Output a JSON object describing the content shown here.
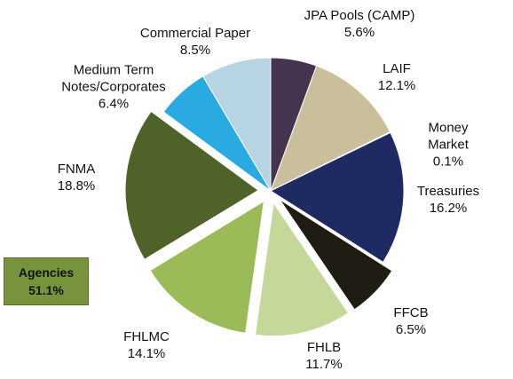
{
  "chart_data": {
    "type": "pie",
    "categories": [
      "JPA Pools (CAMP)",
      "LAIF",
      "Money Market",
      "Treasuries",
      "FFCB",
      "FHLB",
      "FHLMC",
      "FNMA",
      "Medium Term\nNotes/Corporates",
      "Commercial Paper"
    ],
    "values": [
      5.6,
      12.1,
      0.1,
      16.2,
      6.5,
      11.7,
      14.1,
      18.8,
      6.4,
      8.5
    ],
    "value_labels": [
      "5.6%",
      "12.1%",
      "0.1%",
      "16.2%",
      "6.5%",
      "11.7%",
      "14.1%",
      "18.8%",
      "6.4%",
      "8.5%"
    ],
    "colors": [
      "#45344f",
      "#c9bf9a",
      "#e6d86a",
      "#1f2a63",
      "#1f1c14",
      "#c5d89a",
      "#9bbb59",
      "#4f6228",
      "#29abe2",
      "#b7d4e3"
    ],
    "exploded": [
      false,
      false,
      false,
      false,
      true,
      true,
      true,
      true,
      false,
      false
    ],
    "annotation": {
      "text": "Agencies",
      "value": 51.1,
      "label": "51.1%"
    }
  }
}
